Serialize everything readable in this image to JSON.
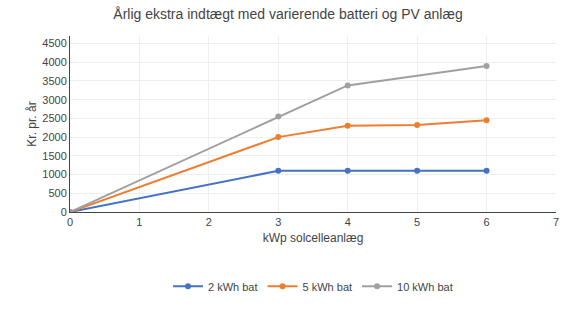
{
  "chart_data": {
    "type": "line",
    "title": "Årlig ekstra indtægt med varierende batteri og PV anlæg",
    "xlabel": "kWp solcelleanlæg",
    "ylabel": "Kr. pr. år",
    "series": [
      {
        "name": "2 kWh bat",
        "color": "#4472c4",
        "x": [
          0,
          3,
          4,
          5,
          6
        ],
        "values": [
          0,
          1100,
          1100,
          1100,
          1100
        ],
        "marker": "circle",
        "line_style": "solid"
      },
      {
        "name": "5 kWh bat",
        "color": "#ed7d31",
        "x": [
          0,
          3,
          4,
          5,
          6
        ],
        "values": [
          0,
          2000,
          2300,
          2320,
          2450
        ],
        "marker": "circle",
        "line_style": "solid"
      },
      {
        "name": "10 kWh bat",
        "color": "#a0a0a0",
        "x": [
          0,
          3,
          4,
          6
        ],
        "values": [
          0,
          2550,
          3380,
          3900
        ],
        "marker": "circle",
        "line_style": "solid"
      }
    ],
    "xlim": [
      0,
      7
    ],
    "ylim": [
      0,
      4700
    ],
    "xticks": [
      0,
      1,
      2,
      3,
      4,
      5,
      6,
      7
    ],
    "yticks": [
      0,
      500,
      1000,
      1500,
      2000,
      2500,
      3000,
      3500,
      4000,
      4500
    ],
    "grid": true,
    "legend": "bottom"
  }
}
